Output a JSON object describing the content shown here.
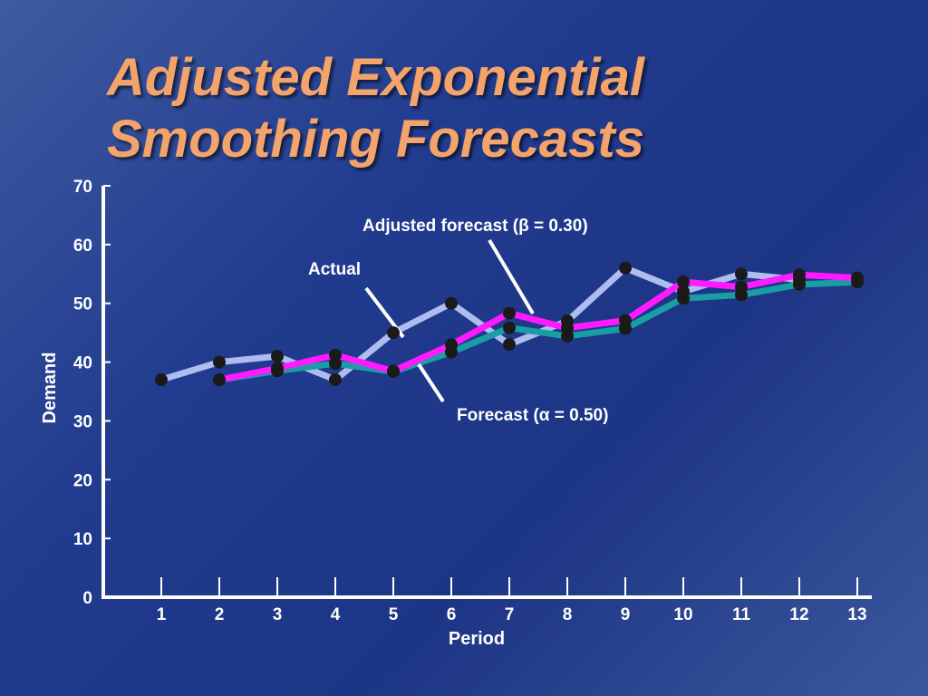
{
  "slide": {
    "title_line1": "Adjusted Exponential",
    "title_line2": "Smoothing Forecasts"
  },
  "colors": {
    "background": "#213b8f",
    "title": "#f4a46a",
    "axis": "#ffffff",
    "actual": "#aebcf0",
    "forecast": "#199ea4",
    "adjusted": "#ff1aff",
    "marker": "#1a1a1a"
  },
  "chart_data": {
    "type": "line",
    "xlabel": "Period",
    "ylabel": "Demand",
    "ylim": [
      0,
      70
    ],
    "yticks": [
      0,
      10,
      20,
      30,
      40,
      50,
      60,
      70
    ],
    "x": [
      1,
      2,
      3,
      4,
      5,
      6,
      7,
      8,
      9,
      10,
      11,
      12,
      13
    ],
    "grid": false,
    "series": [
      {
        "name": "Actual",
        "values": [
          37,
          40,
          41,
          37,
          45,
          50,
          43,
          47,
          56,
          52,
          55,
          54,
          null
        ]
      },
      {
        "name": "Forecast (α = 0.50)",
        "values": [
          null,
          37.0,
          38.5,
          39.75,
          38.38,
          41.69,
          45.84,
          44.42,
          45.71,
          50.85,
          51.43,
          53.21,
          53.61
        ]
      },
      {
        "name": "Adjusted forecast (β = 0.30)",
        "values": [
          null,
          37.0,
          38.95,
          41.2,
          38.47,
          42.96,
          48.32,
          45.8,
          47.09,
          53.65,
          52.79,
          54.86,
          54.33
        ]
      }
    ],
    "annotations": {
      "adjusted": "Adjusted forecast (β = 0.30)",
      "actual": "Actual",
      "forecast": "Forecast (α = 0.50)"
    }
  }
}
